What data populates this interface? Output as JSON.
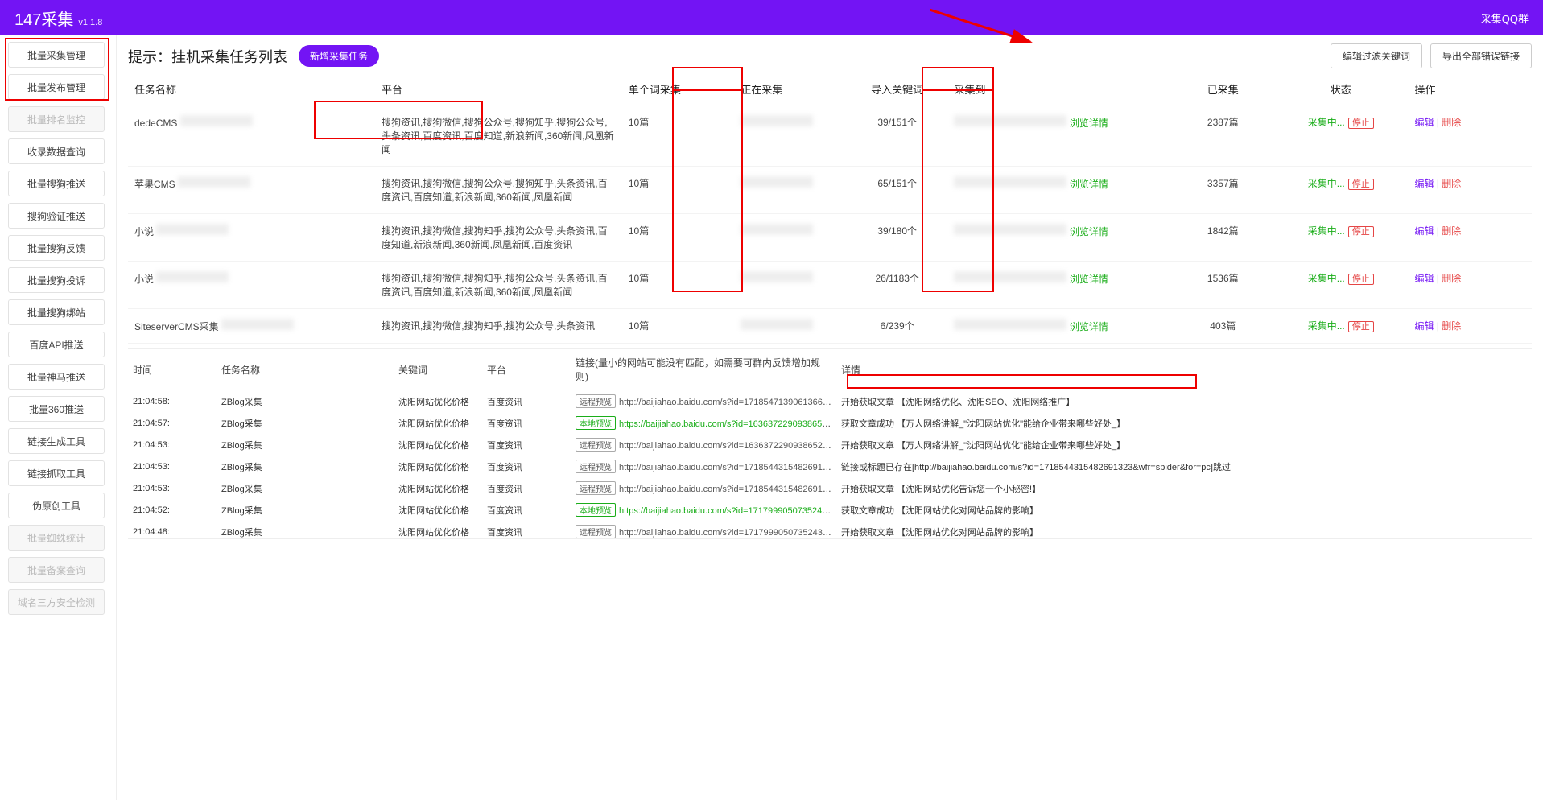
{
  "colors": {
    "primary": "#7314f4",
    "green": "#1aad19",
    "red": "#e54545",
    "anno_red": "#e00000",
    "border": "#eeeeee",
    "bg": "#ffffff"
  },
  "header": {
    "brand": "147采集",
    "version": "v1.1.8",
    "qq_group": "采集QQ群"
  },
  "sidebar": {
    "items": [
      {
        "label": "批量采集管理",
        "disabled": false
      },
      {
        "label": "批量发布管理",
        "disabled": false
      },
      {
        "label": "批量排名监控",
        "disabled": true
      },
      {
        "label": "收录数据查询",
        "disabled": false
      },
      {
        "label": "批量搜狗推送",
        "disabled": false
      },
      {
        "label": "搜狗验证推送",
        "disabled": false
      },
      {
        "label": "批量搜狗反馈",
        "disabled": false
      },
      {
        "label": "批量搜狗投诉",
        "disabled": false
      },
      {
        "label": "批量搜狗绑站",
        "disabled": false
      },
      {
        "label": "百度API推送",
        "disabled": false
      },
      {
        "label": "批量神马推送",
        "disabled": false
      },
      {
        "label": "批量360推送",
        "disabled": false
      },
      {
        "label": "链接生成工具",
        "disabled": false
      },
      {
        "label": "链接抓取工具",
        "disabled": false
      },
      {
        "label": "伪原创工具",
        "disabled": false
      },
      {
        "label": "批量蜘蛛统计",
        "disabled": true
      },
      {
        "label": "批量备案查询",
        "disabled": true
      },
      {
        "label": "域名三方安全检测",
        "disabled": true
      }
    ]
  },
  "page": {
    "title_prefix": "提示：",
    "title": "挂机采集任务列表",
    "new_task_btn": "新增采集任务",
    "filter_btn": "编辑过滤关键词",
    "export_btn": "导出全部错误链接"
  },
  "task_table": {
    "columns": {
      "name": "任务名称",
      "platform": "平台",
      "single": "单个词采集",
      "collecting": "正在采集",
      "import_kw": "导入关键词",
      "collected_to": "采集到",
      "done": "已采集",
      "status": "状态",
      "ops": "操作"
    },
    "status_label": "采集中...",
    "stop_label": "停止",
    "view_detail_label": "浏览详情",
    "edit_label": "编辑",
    "delete_label": "删除",
    "sep": " | ",
    "rows": [
      {
        "name": "dedeCMS",
        "platform": "搜狗资讯,搜狗微信,搜狗公众号,搜狗知乎,搜狗公众号,头条资讯,百度资讯,百度知道,新浪新闻,360新闻,凤凰新闻",
        "single": "10篇",
        "import_kw": "39/151个",
        "done": "2387篇"
      },
      {
        "name": "苹果CMS",
        "platform": "搜狗资讯,搜狗微信,搜狗公众号,搜狗知乎,头条资讯,百度资讯,百度知道,新浪新闻,360新闻,凤凰新闻",
        "single": "10篇",
        "import_kw": "65/151个",
        "done": "3357篇"
      },
      {
        "name": "小说",
        "platform": "搜狗资讯,搜狗微信,搜狗知乎,搜狗公众号,头条资讯,百度知道,新浪新闻,360新闻,凤凰新闻,百度资讯",
        "single": "10篇",
        "import_kw": "39/180个",
        "done": "1842篇"
      },
      {
        "name": "小说",
        "platform": "搜狗资讯,搜狗微信,搜狗知乎,搜狗公众号,头条资讯,百度资讯,百度知道,新浪新闻,360新闻,凤凰新闻",
        "single": "10篇",
        "import_kw": "26/1183个",
        "done": "1536篇"
      },
      {
        "name": "SiteserverCMS采集",
        "platform": "搜狗资讯,搜狗微信,搜狗知乎,搜狗公众号,头条资讯",
        "single": "10篇",
        "import_kw": "6/239个",
        "done": "403篇"
      }
    ]
  },
  "log_table": {
    "columns": {
      "time": "时间",
      "task": "任务名称",
      "keyword": "关键词",
      "platform": "平台",
      "link": "链接(量小的网站可能没有匹配，如需要可群内反馈增加规则)",
      "detail": "详情"
    },
    "badge_remote": "远程预览",
    "badge_local": "本地预览",
    "rows": [
      {
        "time": "21:04:58:",
        "task": "ZBlog采集",
        "keyword": "沈阳网站优化价格",
        "platform": "百度资讯",
        "badge": "remote",
        "url": "http://baijiahao.baidu.com/s?id=1718547139061366579&wfr=s...",
        "url_green": false,
        "detail": "开始获取文章 【沈阳网络优化、沈阳SEO、沈阳网络推广】"
      },
      {
        "time": "21:04:57:",
        "task": "ZBlog采集",
        "keyword": "沈阳网站优化价格",
        "platform": "百度资讯",
        "badge": "local",
        "url": "https://baijiahao.baidu.com/s?id=1636372290938652414&wfr=s...",
        "url_green": true,
        "detail": "获取文章成功 【万人网络讲解_\"沈阳网站优化\"能给企业带来哪些好处_】"
      },
      {
        "time": "21:04:53:",
        "task": "ZBlog采集",
        "keyword": "沈阳网站优化价格",
        "platform": "百度资讯",
        "badge": "remote",
        "url": "http://baijiahao.baidu.com/s?id=1636372290938652414&wfr=s...",
        "url_green": false,
        "detail": "开始获取文章 【万人网络讲解_\"沈阳网站优化\"能给企业带来哪些好处_】"
      },
      {
        "time": "21:04:53:",
        "task": "ZBlog采集",
        "keyword": "沈阳网站优化价格",
        "platform": "百度资讯",
        "badge": "remote",
        "url": "http://baijiahao.baidu.com/s?id=1718544315482691323&wfr=s...",
        "url_green": false,
        "detail": "链接或标题已存在[http://baijiahao.baidu.com/s?id=1718544315482691323&wfr=spider&for=pc]跳过",
        "detail_red": true
      },
      {
        "time": "21:04:53:",
        "task": "ZBlog采集",
        "keyword": "沈阳网站优化价格",
        "platform": "百度资讯",
        "badge": "remote",
        "url": "http://baijiahao.baidu.com/s?id=1718544315482691323&wfr=s...",
        "url_green": false,
        "detail": "开始获取文章 【沈阳网站优化告诉您一个小秘密!】"
      },
      {
        "time": "21:04:52:",
        "task": "ZBlog采集",
        "keyword": "沈阳网站优化价格",
        "platform": "百度资讯",
        "badge": "local",
        "url": "https://baijiahao.baidu.com/s?id=1717999050735243996&wfr=s...",
        "url_green": true,
        "detail": "获取文章成功 【沈阳网站优化对网站品牌的影响】"
      },
      {
        "time": "21:04:48:",
        "task": "ZBlog采集",
        "keyword": "沈阳网站优化价格",
        "platform": "百度资讯",
        "badge": "remote",
        "url": "http://baijiahao.baidu.com/s?id=1717999050735243996&wfr=s...",
        "url_green": false,
        "detail": "开始获取文章 【沈阳网站优化对网站品牌的影响】"
      }
    ]
  }
}
